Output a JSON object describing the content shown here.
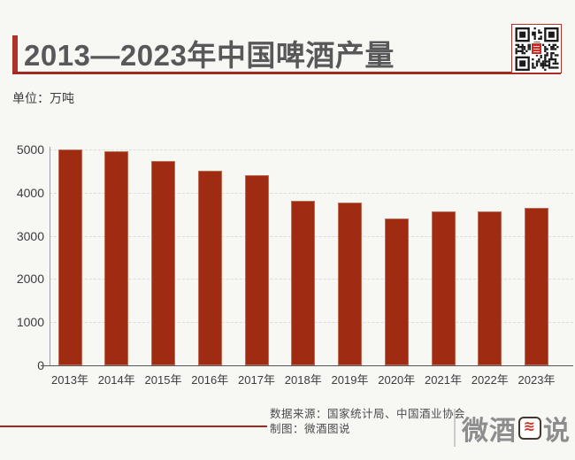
{
  "header": {
    "title": "2013—2023年中国啤酒产量",
    "unit_label": "单位：万吨"
  },
  "chart_data": {
    "type": "bar",
    "title": "2013—2023年中国啤酒产量",
    "categories": [
      "2013年",
      "2014年",
      "2015年",
      "2016年",
      "2017年",
      "2018年",
      "2019年",
      "2020年",
      "2021年",
      "2022年",
      "2023年"
    ],
    "values": [
      5000,
      4950,
      4730,
      4510,
      4410,
      3810,
      3770,
      3410,
      3560,
      3570,
      3650
    ],
    "xlabel": "",
    "ylabel": "单位：万吨",
    "ylim": [
      0,
      5000
    ],
    "yticks": [
      0,
      1000,
      2000,
      3000,
      4000,
      5000
    ],
    "grid": "horizontal-dashed",
    "legend": "none",
    "bar_color": "#9e2b12"
  },
  "footer": {
    "source_line": "数据来源：国家统计局、中国酒业协会",
    "credit_line": "制图：微酒图说",
    "logo_text_pre": "微酒",
    "logo_wave": "≋",
    "logo_text_post": "说"
  },
  "colors": {
    "bar": "#9e2b12",
    "accent_bar": "#ae3227",
    "underline": "#a2291f",
    "axis": "#55565a",
    "grid": "#dcdcdc",
    "text_dark": "#3c3c3e",
    "title": "#58585a",
    "footer_text": "#4b4b4b",
    "logo_gray": "#8d8d8d",
    "logo_box_border": "#453730",
    "logo_wave": "#cc3322",
    "background": "#f7f7f4",
    "qr_border": "#b0352b"
  }
}
